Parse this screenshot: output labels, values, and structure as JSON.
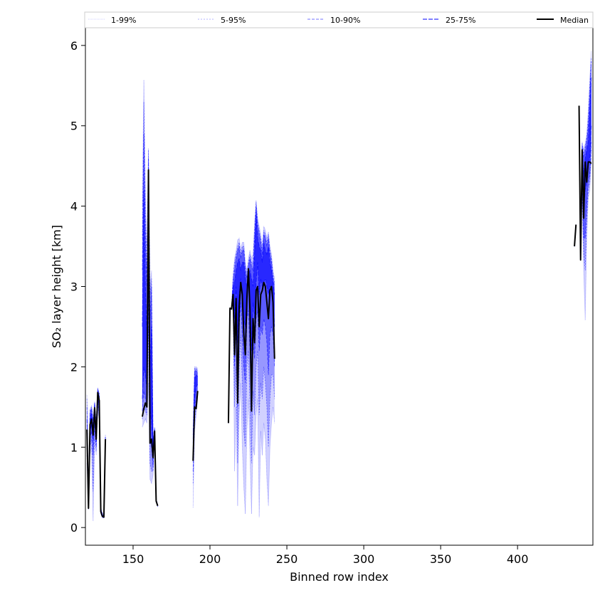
{
  "chart_data": {
    "type": "line",
    "xlabel": "Binned row index",
    "ylabel": "SO₂ layer height [km]",
    "xlim": [
      119,
      449
    ],
    "ylim": [
      -0.22,
      6.22
    ],
    "xticks": [
      150,
      200,
      250,
      300,
      350,
      400
    ],
    "yticks": [
      0,
      1,
      2,
      3,
      4,
      5,
      6
    ],
    "grid": false,
    "legend_position": "top, above plot area",
    "colors": {
      "band": "#0000ff",
      "median": "#000000"
    },
    "legend": [
      {
        "label": "1-99%",
        "style": "band-1-99"
      },
      {
        "label": "5-95%",
        "style": "band-5-95"
      },
      {
        "label": "10-90%",
        "style": "band-10-90"
      },
      {
        "label": "25-75%",
        "style": "band-25-75"
      },
      {
        "label": "Median",
        "style": "median"
      }
    ],
    "segments": [
      {
        "x": [
          120,
          121,
          122,
          123,
          124,
          125,
          126,
          127,
          128,
          129,
          130,
          131,
          132
        ],
        "median": [
          1.22,
          0.24,
          1.28,
          1.35,
          1.15,
          1.49,
          1.1,
          1.68,
          1.58,
          0.2,
          0.14,
          0.13,
          1.1
        ],
        "p25": [
          1.18,
          0.25,
          1.2,
          1.28,
          1.1,
          1.4,
          1.07,
          1.6,
          1.52,
          0.2,
          0.14,
          0.13,
          1.08
        ],
        "p75": [
          1.35,
          0.27,
          1.35,
          1.42,
          1.22,
          1.53,
          1.17,
          1.7,
          1.62,
          0.22,
          0.15,
          0.14,
          1.12
        ],
        "p10": [
          1.05,
          0.25,
          1.1,
          1.2,
          0.9,
          1.3,
          1.0,
          1.55,
          1.45,
          0.19,
          0.13,
          0.13,
          1.05
        ],
        "p90": [
          1.5,
          0.3,
          1.42,
          1.48,
          1.3,
          1.55,
          1.25,
          1.72,
          1.65,
          0.23,
          0.16,
          0.15,
          1.14
        ],
        "p5": [
          0.9,
          0.24,
          1.0,
          1.1,
          0.45,
          1.2,
          0.95,
          1.5,
          1.4,
          0.18,
          0.13,
          0.12,
          1.03
        ],
        "p95": [
          1.6,
          0.32,
          1.45,
          1.5,
          1.33,
          1.56,
          1.3,
          1.73,
          1.66,
          0.24,
          0.17,
          0.16,
          1.15
        ],
        "p1": [
          0.8,
          0.22,
          0.9,
          1.0,
          0.08,
          1.1,
          0.9,
          1.45,
          1.35,
          0.17,
          0.12,
          0.12,
          1.0
        ],
        "p99": [
          1.65,
          0.35,
          1.47,
          1.52,
          1.35,
          1.57,
          1.33,
          1.74,
          1.67,
          0.25,
          0.18,
          0.17,
          1.16
        ]
      },
      {
        "x": [
          156,
          157,
          158,
          159,
          160,
          161,
          162,
          163,
          164,
          165,
          166
        ],
        "median": [
          1.38,
          1.48,
          1.55,
          1.5,
          4.45,
          1.05,
          1.1,
          0.87,
          1.2,
          0.33,
          0.27
        ],
        "p25": [
          1.6,
          2.0,
          1.9,
          1.7,
          3.5,
          1.5,
          1.3,
          0.95,
          1.18,
          0.33,
          0.27
        ],
        "p75": [
          2.5,
          4.2,
          3.0,
          2.4,
          4.3,
          2.0,
          2.5,
          1.0,
          1.22,
          0.34,
          0.28
        ],
        "p10": [
          1.45,
          1.7,
          1.6,
          1.5,
          3.0,
          1.1,
          1.0,
          0.75,
          1.17,
          0.33,
          0.27
        ],
        "p90": [
          3.2,
          4.9,
          3.6,
          3.0,
          4.6,
          2.6,
          3.0,
          1.05,
          1.23,
          0.34,
          0.28
        ],
        "p5": [
          1.35,
          1.5,
          1.45,
          1.4,
          2.5,
          0.8,
          0.7,
          0.7,
          1.16,
          0.32,
          0.26
        ],
        "p95": [
          3.6,
          5.3,
          3.9,
          3.2,
          4.7,
          2.9,
          3.1,
          1.07,
          1.24,
          0.35,
          0.29
        ],
        "p1": [
          1.25,
          1.3,
          1.35,
          1.3,
          1.8,
          0.6,
          0.55,
          0.65,
          1.15,
          0.32,
          0.26
        ],
        "p99": [
          4.0,
          5.57,
          4.2,
          3.5,
          4.72,
          3.0,
          3.2,
          1.1,
          1.25,
          0.35,
          0.29
        ]
      },
      {
        "x": [
          189,
          190,
          191,
          192
        ],
        "median": [
          0.83,
          1.5,
          1.48,
          1.7
        ],
        "p25": [
          0.9,
          1.6,
          1.75,
          1.78
        ],
        "p75": [
          1.05,
          1.85,
          1.9,
          1.88
        ],
        "p10": [
          0.7,
          1.45,
          1.6,
          1.7
        ],
        "p90": [
          1.1,
          1.95,
          1.95,
          1.93
        ],
        "p5": [
          0.55,
          1.3,
          1.5,
          1.65
        ],
        "p95": [
          1.15,
          1.98,
          1.98,
          1.96
        ],
        "p1": [
          0.25,
          1.2,
          1.4,
          1.6
        ],
        "p99": [
          1.2,
          2.0,
          2.0,
          1.98
        ]
      },
      {
        "x": [
          212,
          213,
          214,
          215,
          216,
          217,
          218,
          219,
          220,
          221,
          222,
          223,
          224,
          225,
          226,
          227,
          228,
          229,
          230,
          231,
          232,
          233,
          234,
          235,
          236,
          237,
          238,
          239,
          240,
          241,
          242
        ],
        "median": [
          1.3,
          2.73,
          2.72,
          2.9,
          2.15,
          2.85,
          1.55,
          2.75,
          3.05,
          2.9,
          2.4,
          2.15,
          2.85,
          3.22,
          2.7,
          1.45,
          2.6,
          2.3,
          2.95,
          3.0,
          2.5,
          2.9,
          2.95,
          3.05,
          3.0,
          2.8,
          2.6,
          2.95,
          3.0,
          2.8,
          2.1
        ],
        "p25": [
          1.3,
          2.73,
          2.72,
          2.95,
          2.6,
          3.0,
          2.3,
          2.9,
          3.1,
          2.9,
          2.6,
          2.5,
          2.9,
          3.1,
          2.8,
          2.2,
          2.8,
          2.6,
          3.05,
          3.3,
          2.9,
          3.1,
          3.0,
          3.05,
          3.1,
          3.0,
          2.9,
          3.0,
          3.0,
          2.9,
          2.5
        ],
        "p75": [
          1.3,
          2.73,
          2.72,
          3.0,
          3.05,
          3.2,
          3.3,
          3.35,
          3.2,
          3.3,
          3.3,
          3.1,
          3.0,
          3.15,
          3.2,
          3.1,
          3.0,
          3.4,
          3.9,
          3.6,
          3.5,
          3.45,
          3.3,
          3.55,
          3.45,
          3.4,
          3.5,
          3.3,
          3.2,
          3.05,
          2.9
        ],
        "p10": [
          1.3,
          2.73,
          2.72,
          2.85,
          2.0,
          2.5,
          1.5,
          2.5,
          2.8,
          2.4,
          2.0,
          1.8,
          2.6,
          2.7,
          2.2,
          1.5,
          2.3,
          2.1,
          2.6,
          2.7,
          2.2,
          2.5,
          2.4,
          2.6,
          2.5,
          2.3,
          1.9,
          2.4,
          2.5,
          2.4,
          2.0
        ],
        "p90": [
          1.3,
          2.73,
          2.72,
          3.05,
          3.2,
          3.35,
          3.45,
          3.5,
          3.35,
          3.45,
          3.45,
          3.2,
          3.1,
          3.25,
          3.35,
          3.25,
          3.2,
          3.6,
          4.0,
          3.75,
          3.65,
          3.55,
          3.4,
          3.65,
          3.6,
          3.5,
          3.6,
          3.4,
          3.3,
          3.1,
          3.0
        ],
        "p5": [
          1.3,
          2.73,
          2.72,
          2.8,
          1.5,
          2.0,
          0.8,
          2.0,
          2.4,
          1.8,
          1.2,
          1.0,
          2.0,
          2.2,
          1.5,
          0.8,
          1.7,
          1.4,
          2.0,
          2.2,
          1.4,
          1.8,
          1.6,
          2.0,
          1.8,
          1.5,
          1.0,
          1.6,
          1.9,
          1.9,
          1.6
        ],
        "p95": [
          1.3,
          2.73,
          2.72,
          3.1,
          3.3,
          3.4,
          3.5,
          3.55,
          3.4,
          3.5,
          3.5,
          3.25,
          3.15,
          3.3,
          3.4,
          3.3,
          3.3,
          3.7,
          4.05,
          3.8,
          3.7,
          3.6,
          3.45,
          3.7,
          3.65,
          3.55,
          3.65,
          3.45,
          3.35,
          3.15,
          3.05
        ],
        "p1": [
          1.3,
          2.73,
          2.72,
          2.7,
          0.7,
          1.5,
          0.27,
          1.4,
          1.8,
          1.0,
          0.5,
          0.17,
          1.2,
          1.6,
          0.9,
          0.17,
          1.0,
          0.9,
          1.4,
          1.6,
          0.13,
          1.2,
          0.9,
          1.3,
          1.1,
          0.6,
          0.27,
          1.0,
          1.3,
          1.5,
          1.3
        ],
        "p99": [
          1.3,
          2.73,
          2.72,
          3.15,
          3.35,
          3.45,
          3.58,
          3.6,
          3.45,
          3.55,
          3.55,
          3.3,
          3.2,
          3.35,
          3.45,
          3.35,
          3.4,
          3.8,
          4.07,
          3.85,
          3.75,
          3.65,
          3.5,
          3.75,
          3.7,
          3.6,
          3.68,
          3.5,
          3.4,
          3.2,
          3.1
        ]
      },
      {
        "x": [
          437,
          438
        ],
        "median": [
          3.5,
          3.77
        ],
        "p25": [
          3.5,
          3.77
        ],
        "p75": [
          3.5,
          3.77
        ],
        "p10": [
          3.5,
          3.77
        ],
        "p90": [
          3.5,
          3.77
        ],
        "p5": [
          3.5,
          3.77
        ],
        "p95": [
          3.5,
          3.77
        ],
        "p1": [
          3.5,
          3.77
        ],
        "p99": [
          3.5,
          3.77
        ]
      },
      {
        "x": [
          440,
          441,
          442,
          443,
          444,
          445,
          446,
          447,
          448
        ],
        "median": [
          5.25,
          3.33,
          4.7,
          3.85,
          4.55,
          4.3,
          4.55,
          4.55,
          4.53
        ],
        "p25": [
          5.25,
          3.33,
          4.5,
          3.9,
          4.2,
          4.3,
          4.5,
          4.6,
          5.0
        ],
        "p75": [
          5.25,
          3.33,
          4.7,
          4.4,
          4.6,
          4.7,
          4.8,
          5.2,
          5.6
        ],
        "p10": [
          5.25,
          3.33,
          4.3,
          3.6,
          3.6,
          4.0,
          4.3,
          4.4,
          4.8
        ],
        "p90": [
          5.25,
          3.33,
          4.75,
          4.6,
          4.7,
          4.8,
          5.0,
          5.4,
          5.8
        ],
        "p5": [
          5.25,
          3.33,
          4.2,
          3.4,
          3.2,
          3.8,
          4.2,
          4.3,
          4.7
        ],
        "p95": [
          5.25,
          3.33,
          4.78,
          4.65,
          4.75,
          4.85,
          5.1,
          5.5,
          5.85
        ],
        "p1": [
          5.25,
          3.33,
          4.1,
          3.2,
          2.58,
          3.6,
          4.1,
          4.2,
          4.6
        ],
        "p99": [
          5.25,
          3.33,
          4.8,
          4.7,
          4.78,
          4.9,
          5.2,
          5.6,
          5.93
        ]
      }
    ]
  }
}
